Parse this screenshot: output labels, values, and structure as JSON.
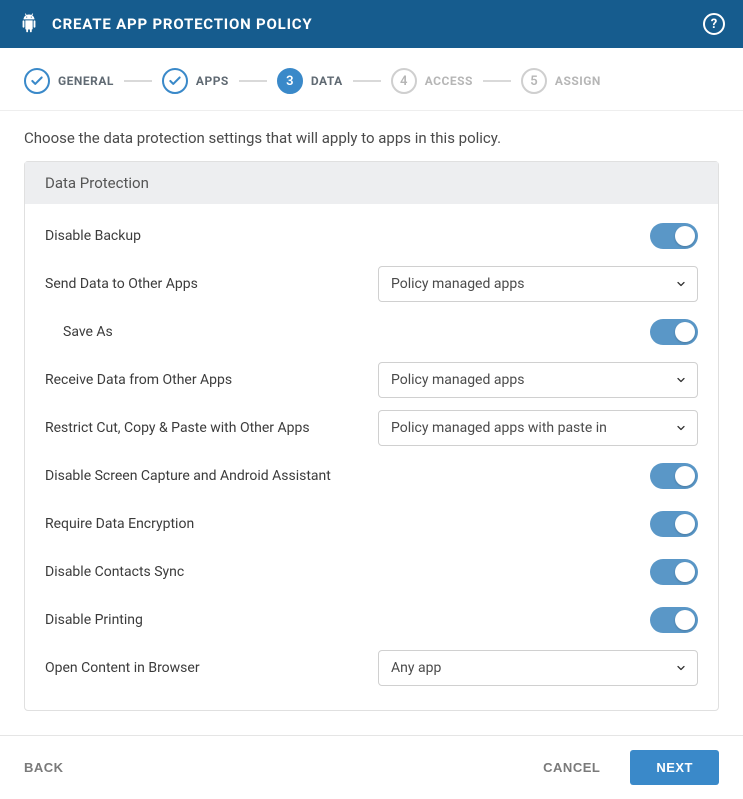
{
  "colors": {
    "header_bg": "#165c8e",
    "primary": "#3a89c9",
    "toggle_on": "#5a97c7",
    "panel_header_bg": "#edeef0",
    "border": "#e0e0e0",
    "step_pending": "#b6b6b6",
    "connector": "#d9d9d9",
    "text": "#3b3b3b"
  },
  "header": {
    "title": "CREATE APP PROTECTION POLICY",
    "help_glyph": "?"
  },
  "stepper": {
    "steps": [
      {
        "id": "general",
        "label": "GENERAL",
        "state": "done",
        "indicator": "✓"
      },
      {
        "id": "apps",
        "label": "APPS",
        "state": "done",
        "indicator": "✓"
      },
      {
        "id": "data",
        "label": "DATA",
        "state": "active",
        "indicator": "3"
      },
      {
        "id": "access",
        "label": "ACCESS",
        "state": "pending",
        "indicator": "4"
      },
      {
        "id": "assign",
        "label": "ASSIGN",
        "state": "pending",
        "indicator": "5"
      }
    ]
  },
  "intro": "Choose the data protection settings that will apply to apps in this policy.",
  "panel": {
    "title": "Data Protection",
    "rows": [
      {
        "key": "disable_backup",
        "label": "Disable Backup",
        "type": "toggle",
        "value": true
      },
      {
        "key": "send_data",
        "label": "Send Data to Other Apps",
        "type": "select",
        "value": "Policy managed apps"
      },
      {
        "key": "save_as",
        "label": "Save As",
        "type": "toggle",
        "value": true,
        "indent": true
      },
      {
        "key": "receive_data",
        "label": "Receive Data from Other Apps",
        "type": "select",
        "value": "Policy managed apps"
      },
      {
        "key": "restrict_ccp",
        "label": "Restrict Cut, Copy & Paste with Other Apps",
        "type": "select",
        "value": "Policy managed apps with paste in"
      },
      {
        "key": "disable_screen_capture",
        "label": "Disable Screen Capture and Android Assistant",
        "type": "toggle",
        "value": true
      },
      {
        "key": "require_encryption",
        "label": "Require Data Encryption",
        "type": "toggle",
        "value": true
      },
      {
        "key": "disable_contacts_sync",
        "label": "Disable Contacts Sync",
        "type": "toggle",
        "value": true
      },
      {
        "key": "disable_printing",
        "label": "Disable Printing",
        "type": "toggle",
        "value": true
      },
      {
        "key": "open_content_browser",
        "label": "Open Content in Browser",
        "type": "select",
        "value": "Any app"
      }
    ]
  },
  "footer": {
    "back": "BACK",
    "cancel": "CANCEL",
    "next": "NEXT"
  }
}
